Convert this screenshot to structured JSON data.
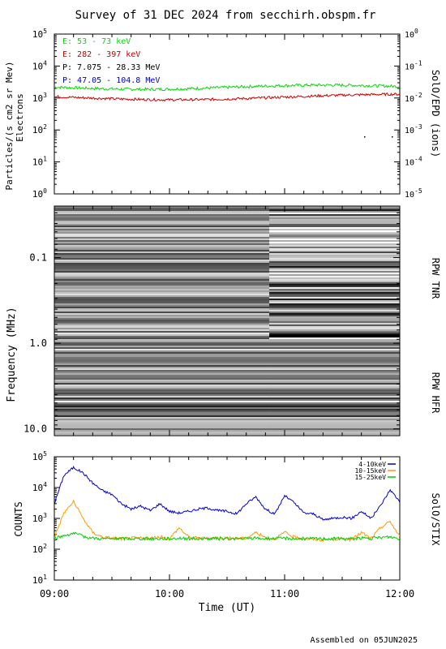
{
  "title": "Survey of 31 DEC 2024 from secchirh.obspm.fr",
  "footer": "Assembled on 05JUN2025",
  "x_axis": {
    "label": "Time (UT)",
    "ticks": [
      "09:00",
      "10:00",
      "11:00",
      "12:00"
    ]
  },
  "chart_data": [
    {
      "type": "line",
      "panel": "particles",
      "ylabel_left": "Particles/(s cm2 sr Mev)",
      "ylabel_left2": "Electrons",
      "ylabel_right": "SolO/EPD (ions)",
      "yscale": "log",
      "ylim": [
        1,
        100000
      ],
      "ylim_right": [
        1e-05,
        1
      ],
      "yticks": [
        "10^0",
        "10^1",
        "10^2",
        "10^3",
        "10^4",
        "10^5"
      ],
      "yticks_right": [
        "10^-5",
        "10^-4",
        "10^-3",
        "10^-2",
        "10^-1",
        "10^0"
      ],
      "x_range": [
        "09:00",
        "12:00"
      ],
      "series": [
        {
          "name": "E: 53 - 73 keV",
          "color": "#00dd00",
          "approx_level": 2200
        },
        {
          "name": "E: 282 - 397 keV",
          "color": "#cc0000",
          "approx_level": 1100
        },
        {
          "name": "P: 7.075 - 28.33 MeV",
          "color": "#000000",
          "approx_level": null
        },
        {
          "name": "P: 47.05 - 104.8 MeV",
          "color": "#0000cc",
          "approx_level": null
        }
      ]
    },
    {
      "type": "heatmap",
      "panel": "radio",
      "ylabel_left": "Frequency (MHz)",
      "ylabel_right_top": "RPW TNR",
      "ylabel_right_bottom": "RPW HFR",
      "yscale": "log",
      "ylim": [
        0.025,
        12
      ],
      "yticks": [
        "0.1",
        "1.0",
        "10.0"
      ],
      "x_range": [
        "09:00",
        "12:00"
      ],
      "colormap": "grayscale",
      "tnr_break_time": "10:52"
    },
    {
      "type": "line",
      "panel": "stix",
      "ylabel_left": "COUNTS",
      "ylabel_right": "SolO/STIX",
      "yscale": "log",
      "ylim": [
        10,
        100000
      ],
      "yticks": [
        "10^1",
        "10^2",
        "10^3",
        "10^4",
        "10^5"
      ],
      "x_range": [
        "09:00",
        "12:00"
      ],
      "series": [
        {
          "name": "4-10keV",
          "color": "#0000cc",
          "x_min": [
            0,
            5,
            10,
            15,
            20,
            25,
            30,
            35,
            40,
            45,
            50,
            55,
            60,
            65,
            70,
            75,
            80,
            85,
            90,
            95,
            100,
            105,
            110,
            115,
            120,
            125,
            130,
            135,
            140,
            145,
            150,
            155,
            160,
            165,
            170,
            175,
            180
          ],
          "values": [
            3000,
            25000,
            45000,
            30000,
            14000,
            8000,
            6000,
            3000,
            2000,
            2500,
            1800,
            3000,
            1700,
            1500,
            1700,
            2000,
            2200,
            1800,
            1700,
            1400,
            3000,
            5000,
            2000,
            1400,
            5500,
            3200,
            1500,
            1400,
            900,
            1000,
            1100,
            1000,
            1700,
            1000,
            2600,
            8500,
            3500
          ]
        },
        {
          "name": "10-15keV",
          "color": "#ff9900",
          "x_min": [
            0,
            5,
            10,
            15,
            20,
            25,
            30,
            35,
            40,
            45,
            50,
            55,
            60,
            65,
            70,
            75,
            80,
            85,
            90,
            95,
            100,
            105,
            110,
            115,
            120,
            125,
            130,
            135,
            140,
            145,
            150,
            155,
            160,
            165,
            170,
            175,
            180
          ],
          "values": [
            250,
            1500,
            3500,
            1000,
            350,
            250,
            230,
            220,
            230,
            230,
            220,
            250,
            220,
            500,
            250,
            230,
            220,
            240,
            230,
            220,
            230,
            350,
            240,
            220,
            350,
            240,
            220,
            210,
            200,
            210,
            220,
            200,
            350,
            220,
            500,
            800,
            250
          ]
        },
        {
          "name": "15-25keV",
          "color": "#00cc00",
          "x_min": [
            0,
            5,
            10,
            15,
            20,
            25,
            30,
            35,
            40,
            45,
            50,
            55,
            60,
            65,
            70,
            75,
            80,
            85,
            90,
            95,
            100,
            105,
            110,
            115,
            120,
            125,
            130,
            135,
            140,
            145,
            150,
            155,
            160,
            165,
            170,
            175,
            180
          ],
          "values": [
            220,
            280,
            330,
            260,
            230,
            220,
            220,
            220,
            220,
            220,
            220,
            220,
            220,
            230,
            220,
            220,
            220,
            220,
            220,
            220,
            220,
            230,
            220,
            220,
            230,
            220,
            220,
            220,
            220,
            220,
            220,
            220,
            230,
            220,
            240,
            250,
            220
          ]
        }
      ]
    }
  ]
}
